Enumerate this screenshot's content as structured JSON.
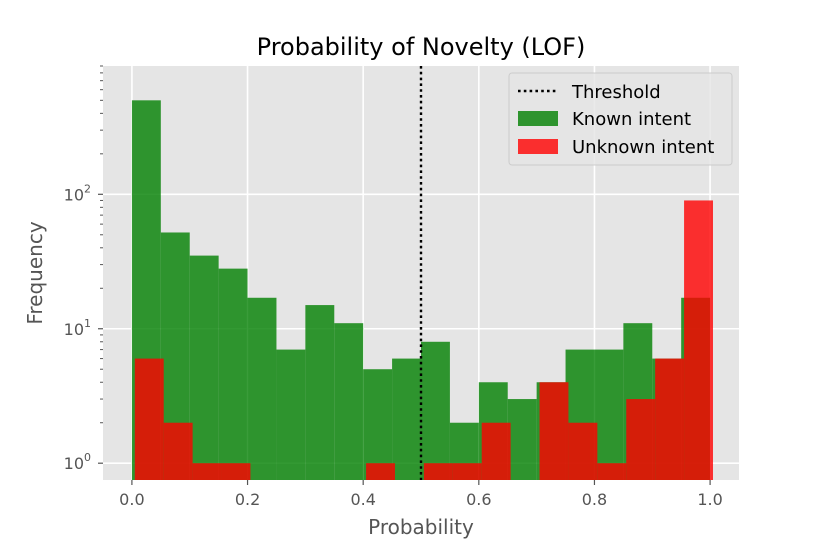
{
  "chart_data": {
    "type": "histogram",
    "title": "Probability of Novelty (LOF)",
    "xlabel": "Probability",
    "ylabel": "Frequency",
    "xlim": [
      -0.05,
      1.05
    ],
    "ylim": [
      0.75,
      900
    ],
    "y_scale": "log",
    "grid": true,
    "legend_position": "top-right",
    "x_ticks": [
      0.0,
      0.2,
      0.4,
      0.6,
      0.8,
      1.0
    ],
    "x_tick_labels": [
      "0.0",
      "0.2",
      "0.4",
      "0.6",
      "0.8",
      "1.0"
    ],
    "y_ticks": [
      1,
      10,
      100
    ],
    "y_tick_labels": [
      {
        "base": "10",
        "exp": "0"
      },
      {
        "base": "10",
        "exp": "1"
      },
      {
        "base": "10",
        "exp": "2"
      }
    ],
    "threshold": {
      "name": "Threshold",
      "x": 0.5,
      "color": "#000000"
    },
    "series": [
      {
        "name": "Known intent",
        "color": "#008000",
        "bin_edges": [
          0.0,
          0.05,
          0.1,
          0.15,
          0.2,
          0.25,
          0.3,
          0.35,
          0.4,
          0.45,
          0.5,
          0.55,
          0.6,
          0.65,
          0.7,
          0.75,
          0.8,
          0.85,
          0.9,
          0.95,
          1.0
        ],
        "counts": [
          500,
          52,
          35,
          28,
          17,
          7,
          15,
          11,
          5,
          6,
          8,
          2,
          4,
          3,
          4,
          7,
          7,
          11,
          6,
          17
        ]
      },
      {
        "name": "Unknown intent",
        "color": "#ff0000",
        "bin_edges": [
          0.005,
          0.055,
          0.105,
          0.155,
          0.205,
          0.255,
          0.305,
          0.355,
          0.405,
          0.455,
          0.505,
          0.555,
          0.605,
          0.655,
          0.705,
          0.755,
          0.805,
          0.855,
          0.905,
          0.955,
          1.005
        ],
        "counts": [
          6,
          2,
          1,
          1,
          0,
          0,
          0,
          0,
          1,
          0,
          1,
          1,
          2,
          0,
          4,
          2,
          1,
          3,
          6,
          90
        ]
      }
    ]
  }
}
